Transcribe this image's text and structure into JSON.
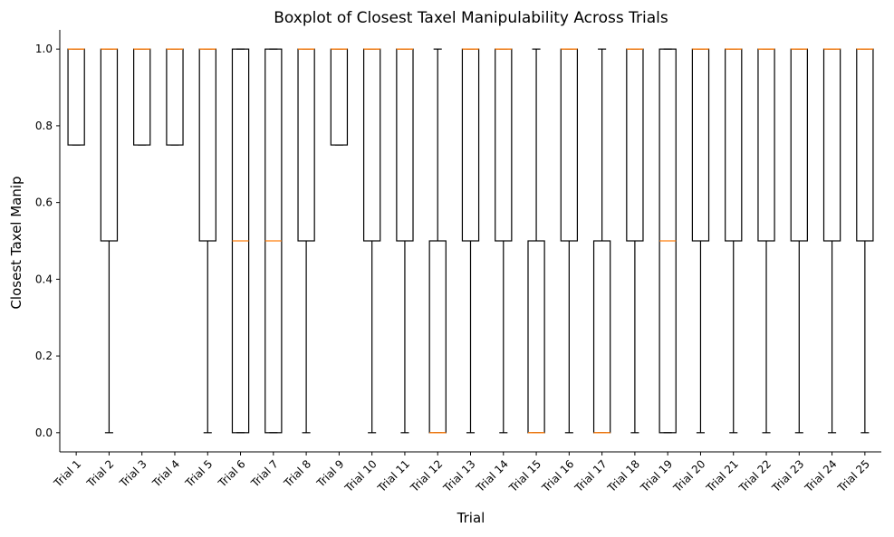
{
  "chart_data": {
    "type": "boxplot",
    "title": "Boxplot of Closest Taxel Manipulability Across Trials",
    "xlabel": "Trial",
    "ylabel": "Closest Taxel Manip",
    "ylim": [
      -0.05,
      1.05
    ],
    "yticks": [
      "0.0",
      "0.2",
      "0.4",
      "0.6",
      "0.8",
      "1.0"
    ],
    "grid": false,
    "colors": {
      "box": "#000000",
      "median": "#ff7f0e"
    },
    "categories": [
      "Trial 1",
      "Trial 2",
      "Trial 3",
      "Trial 4",
      "Trial 5",
      "Trial 6",
      "Trial 7",
      "Trial 8",
      "Trial 9",
      "Trial 10",
      "Trial 11",
      "Trial 12",
      "Trial 13",
      "Trial 14",
      "Trial 15",
      "Trial 16",
      "Trial 17",
      "Trial 18",
      "Trial 19",
      "Trial 20",
      "Trial 21",
      "Trial 22",
      "Trial 23",
      "Trial 24",
      "Trial 25"
    ],
    "boxes": [
      {
        "whislo": 0.75,
        "q1": 0.75,
        "med": 1.0,
        "q3": 1.0,
        "whishi": 1.0
      },
      {
        "whislo": 0.0,
        "q1": 0.5,
        "med": 1.0,
        "q3": 1.0,
        "whishi": 1.0
      },
      {
        "whislo": 0.75,
        "q1": 0.75,
        "med": 1.0,
        "q3": 1.0,
        "whishi": 1.0
      },
      {
        "whislo": 0.75,
        "q1": 0.75,
        "med": 1.0,
        "q3": 1.0,
        "whishi": 1.0
      },
      {
        "whislo": 0.0,
        "q1": 0.5,
        "med": 1.0,
        "q3": 1.0,
        "whishi": 1.0
      },
      {
        "whislo": 0.0,
        "q1": 0.0,
        "med": 0.5,
        "q3": 1.0,
        "whishi": 1.0
      },
      {
        "whislo": 0.0,
        "q1": 0.0,
        "med": 0.5,
        "q3": 1.0,
        "whishi": 1.0
      },
      {
        "whislo": 0.0,
        "q1": 0.5,
        "med": 1.0,
        "q3": 1.0,
        "whishi": 1.0
      },
      {
        "whislo": 0.75,
        "q1": 0.75,
        "med": 1.0,
        "q3": 1.0,
        "whishi": 1.0
      },
      {
        "whislo": 0.0,
        "q1": 0.5,
        "med": 1.0,
        "q3": 1.0,
        "whishi": 1.0
      },
      {
        "whislo": 0.0,
        "q1": 0.5,
        "med": 1.0,
        "q3": 1.0,
        "whishi": 1.0
      },
      {
        "whislo": 0.0,
        "q1": 0.0,
        "med": 0.0,
        "q3": 0.5,
        "whishi": 1.0
      },
      {
        "whislo": 0.0,
        "q1": 0.5,
        "med": 1.0,
        "q3": 1.0,
        "whishi": 1.0
      },
      {
        "whislo": 0.0,
        "q1": 0.5,
        "med": 1.0,
        "q3": 1.0,
        "whishi": 1.0
      },
      {
        "whislo": 0.0,
        "q1": 0.0,
        "med": 0.0,
        "q3": 0.5,
        "whishi": 1.0
      },
      {
        "whislo": 0.0,
        "q1": 0.5,
        "med": 1.0,
        "q3": 1.0,
        "whishi": 1.0
      },
      {
        "whislo": 0.0,
        "q1": 0.0,
        "med": 0.0,
        "q3": 0.5,
        "whishi": 1.0
      },
      {
        "whislo": 0.0,
        "q1": 0.5,
        "med": 1.0,
        "q3": 1.0,
        "whishi": 1.0
      },
      {
        "whislo": 0.0,
        "q1": 0.0,
        "med": 0.5,
        "q3": 1.0,
        "whishi": 1.0
      },
      {
        "whislo": 0.0,
        "q1": 0.5,
        "med": 1.0,
        "q3": 1.0,
        "whishi": 1.0
      },
      {
        "whislo": 0.0,
        "q1": 0.5,
        "med": 1.0,
        "q3": 1.0,
        "whishi": 1.0
      },
      {
        "whislo": 0.0,
        "q1": 0.5,
        "med": 1.0,
        "q3": 1.0,
        "whishi": 1.0
      },
      {
        "whislo": 0.0,
        "q1": 0.5,
        "med": 1.0,
        "q3": 1.0,
        "whishi": 1.0
      },
      {
        "whislo": 0.0,
        "q1": 0.5,
        "med": 1.0,
        "q3": 1.0,
        "whishi": 1.0
      },
      {
        "whislo": 0.0,
        "q1": 0.5,
        "med": 1.0,
        "q3": 1.0,
        "whishi": 1.0
      }
    ]
  }
}
